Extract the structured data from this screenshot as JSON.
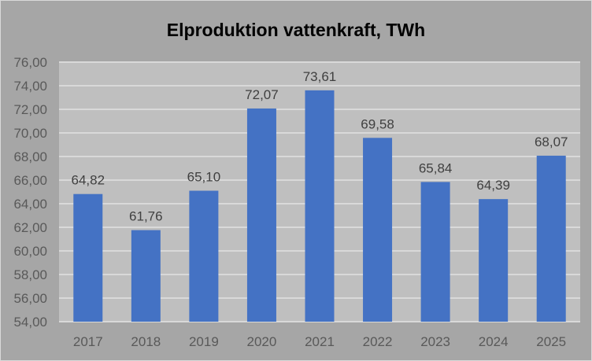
{
  "chart_data": {
    "type": "bar",
    "title": "Elproduktion vattenkraft, TWh",
    "categories": [
      "2017",
      "2018",
      "2019",
      "2020",
      "2021",
      "2022",
      "2023",
      "2024",
      "2025"
    ],
    "values": [
      64.82,
      61.76,
      65.1,
      72.07,
      73.61,
      69.58,
      65.84,
      64.39,
      68.07
    ],
    "value_labels": [
      "64,82",
      "61,76",
      "65,10",
      "72,07",
      "73,61",
      "69,58",
      "65,84",
      "64,39",
      "68,07"
    ],
    "ylim": [
      54,
      76
    ],
    "yticks": [
      "54,00",
      "56,00",
      "58,00",
      "60,00",
      "62,00",
      "64,00",
      "66,00",
      "68,00",
      "70,00",
      "72,00",
      "74,00",
      "76,00"
    ],
    "xlabel": "",
    "ylabel": "",
    "grid": true,
    "legend": "none",
    "colors": {
      "bar": "#4472c4",
      "plot_bg": "#bfbfbf",
      "chart_bg": "#a6a6a6",
      "grid": "#d9d9d9"
    }
  }
}
